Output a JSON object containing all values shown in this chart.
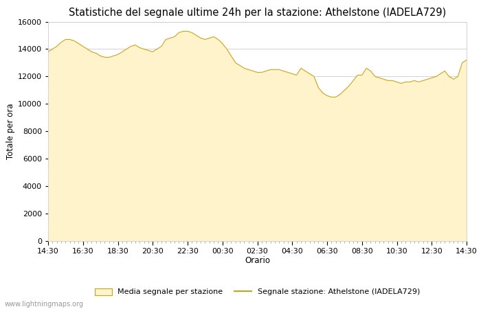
{
  "title": "Statistiche del segnale ultime 24h per la stazione: Athelstone (IADELA729)",
  "xlabel": "Orario",
  "ylabel": "Totale per ora",
  "xlim_labels": [
    "14:30",
    "16:30",
    "18:30",
    "20:30",
    "22:30",
    "00:30",
    "02:30",
    "04:30",
    "06:30",
    "08:30",
    "10:30",
    "12:30",
    "14:30"
  ],
  "ylim": [
    0,
    16000
  ],
  "yticks": [
    0,
    2000,
    4000,
    6000,
    8000,
    10000,
    12000,
    14000,
    16000
  ],
  "fill_color": "#FEF3CB",
  "line_color": "#D4A017",
  "background_color": "#ffffff",
  "plot_bg_color": "#ffffff",
  "grid_color": "#cccccc",
  "watermark": "www.lightningmaps.org",
  "legend_label_fill": "Media segnale per stazione",
  "legend_label_line": "Segnale stazione: Athelstone (IADELA729)",
  "x_values": [
    0,
    1,
    2,
    3,
    4,
    5,
    6,
    7,
    8,
    9,
    10,
    11,
    12,
    13,
    14,
    15,
    16,
    17,
    18,
    19,
    20,
    21,
    22,
    23,
    24,
    25,
    26,
    27,
    28,
    29,
    30,
    31,
    32,
    33,
    34,
    35,
    36,
    37,
    38,
    39,
    40,
    41,
    42,
    43,
    44,
    45,
    46,
    47,
    48,
    49,
    50,
    51,
    52,
    53,
    54,
    55,
    56,
    57,
    58,
    59,
    60,
    61,
    62,
    63,
    64,
    65,
    66,
    67,
    68,
    69,
    70,
    71,
    72,
    73,
    74,
    75,
    76,
    77,
    78,
    79,
    80,
    81,
    82,
    83,
    84,
    85,
    86,
    87,
    88,
    89,
    90,
    91,
    92,
    93,
    94,
    95,
    96
  ],
  "y_values": [
    13800,
    14000,
    14200,
    14500,
    14700,
    14700,
    14600,
    14400,
    14200,
    14000,
    13800,
    13700,
    13500,
    13400,
    13400,
    13500,
    13600,
    13800,
    14000,
    14200,
    14300,
    14100,
    14000,
    13900,
    13800,
    14000,
    14200,
    14700,
    14800,
    14900,
    15200,
    15300,
    15300,
    15200,
    15000,
    14800,
    14700,
    14800,
    14900,
    14700,
    14400,
    14000,
    13500,
    13000,
    12800,
    12600,
    12500,
    12400,
    12300,
    12300,
    12400,
    12500,
    12500,
    12500,
    12400,
    12300,
    12200,
    12100,
    12600,
    12400,
    12200,
    12000,
    11200,
    10800,
    10600,
    10500,
    10500,
    10700,
    11000,
    11300,
    11700,
    12100,
    12100,
    12600,
    12400,
    12000,
    11900,
    11800,
    11700,
    11700,
    11600,
    11500,
    11600,
    11600,
    11700,
    11600,
    11700,
    11800,
    11900,
    12000,
    12200,
    12400,
    12000,
    11800,
    12000,
    13000,
    13200
  ],
  "tick_positions": [
    0,
    8,
    16,
    24,
    32,
    40,
    48,
    56,
    64,
    72,
    80,
    88,
    96
  ],
  "title_fontsize": 10.5,
  "axis_fontsize": 8.5,
  "tick_fontsize": 8,
  "legend_fontsize": 8,
  "watermark_fontsize": 7
}
